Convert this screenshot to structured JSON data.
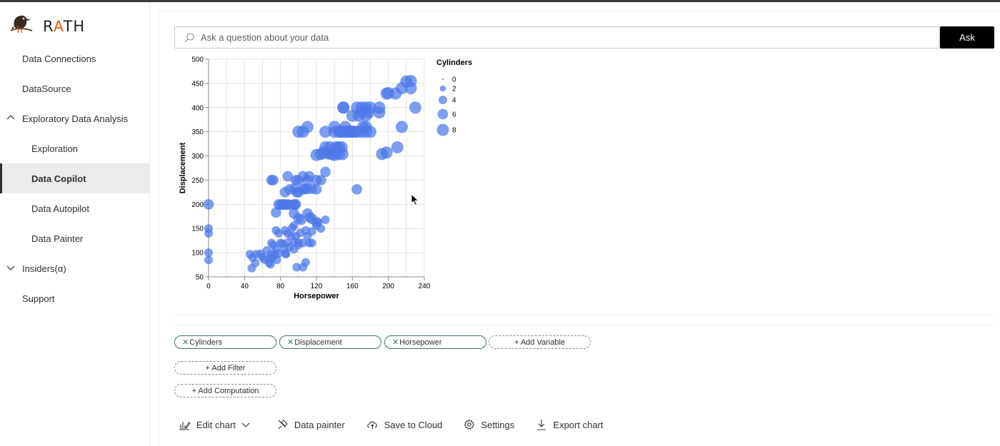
{
  "app": {
    "name_prefix": "R",
    "name_accent": "A",
    "name_suffix": "TH"
  },
  "sidebar": {
    "items": [
      {
        "label": "Data Connections"
      },
      {
        "label": "DataSource"
      },
      {
        "label": "Exploratory Data Analysis"
      },
      {
        "label": "Exploration"
      },
      {
        "label": "Data Copilot"
      },
      {
        "label": "Data Autopilot"
      },
      {
        "label": "Data Painter"
      },
      {
        "label": "Insiders(α)"
      },
      {
        "label": "Support"
      }
    ]
  },
  "search": {
    "placeholder": "Ask a question about your data",
    "button": "Ask"
  },
  "fields": {
    "chips": [
      "Cylinders",
      "Displacement",
      "Horsepower"
    ],
    "add_variable": "+ Add Variable",
    "add_filter": "+ Add Filter",
    "add_computation": "+ Add Computation"
  },
  "toolbar": {
    "edit_chart": "Edit chart",
    "data_painter": "Data painter",
    "save_to_cloud": "Save to Cloud",
    "settings": "Settings",
    "export_chart": "Export chart"
  },
  "chart_data": {
    "type": "scatter",
    "xlabel": "Horsepower",
    "ylabel": "Displacement",
    "xlim": [
      0,
      240
    ],
    "ylim": [
      50,
      500
    ],
    "xticks": [
      0,
      40,
      80,
      120,
      160,
      200,
      240
    ],
    "yticks": [
      50,
      100,
      150,
      200,
      250,
      300,
      350,
      400,
      450,
      500
    ],
    "grid": true,
    "color": "#4c78e8",
    "size_legend": {
      "title": "Cylinders",
      "values": [
        0,
        2,
        4,
        6,
        8
      ],
      "placement": "right"
    },
    "points": [
      [
        0,
        200,
        6
      ],
      [
        0,
        150,
        4
      ],
      [
        0,
        140,
        4
      ],
      [
        0,
        100,
        4
      ],
      [
        0,
        85,
        4
      ],
      [
        46,
        97,
        4
      ],
      [
        48,
        68,
        4
      ],
      [
        49,
        90,
        4
      ],
      [
        52,
        79,
        4
      ],
      [
        53,
        97,
        4
      ],
      [
        58,
        98,
        4
      ],
      [
        60,
        91,
        4
      ],
      [
        62,
        86,
        4
      ],
      [
        65,
        105,
        4
      ],
      [
        67,
        79,
        4
      ],
      [
        68,
        90,
        4
      ],
      [
        69,
        76,
        4
      ],
      [
        70,
        97,
        4
      ],
      [
        70,
        120,
        4
      ],
      [
        71,
        89,
        4
      ],
      [
        72,
        116,
        4
      ],
      [
        74,
        98,
        4
      ],
      [
        75,
        108,
        4
      ],
      [
        76,
        85,
        4
      ],
      [
        78,
        98,
        4
      ],
      [
        80,
        120,
        4
      ],
      [
        82,
        119,
        4
      ],
      [
        84,
        107,
        4
      ],
      [
        86,
        98,
        4
      ],
      [
        88,
        140,
        4
      ],
      [
        88,
        121,
        4
      ],
      [
        90,
        112,
        4
      ],
      [
        92,
        135,
        4
      ],
      [
        93,
        151,
        4
      ],
      [
        95,
        156,
        4
      ],
      [
        95,
        107,
        4
      ],
      [
        96,
        122,
        4
      ],
      [
        97,
        134,
        4
      ],
      [
        98,
        70,
        4
      ],
      [
        100,
        121,
        4
      ],
      [
        102,
        141,
        4
      ],
      [
        105,
        120,
        4
      ],
      [
        108,
        146,
        4
      ],
      [
        110,
        134,
        4
      ],
      [
        112,
        120,
        4
      ],
      [
        115,
        120,
        4
      ],
      [
        115,
        144,
        4
      ],
      [
        120,
        156,
        4
      ],
      [
        122,
        163,
        4
      ],
      [
        125,
        150,
        4
      ],
      [
        130,
        168,
        4
      ],
      [
        75,
        146,
        4
      ],
      [
        78,
        140,
        4
      ],
      [
        85,
        146,
        4
      ],
      [
        86,
        97,
        4
      ],
      [
        100,
        116,
        4
      ],
      [
        105,
        70,
        4
      ],
      [
        108,
        80,
        4
      ],
      [
        70,
        250,
        6
      ],
      [
        72,
        250,
        6
      ],
      [
        85,
        225,
        6
      ],
      [
        88,
        258,
        6
      ],
      [
        90,
        231,
        6
      ],
      [
        95,
        232,
        6
      ],
      [
        97,
        250,
        6
      ],
      [
        98,
        225,
        6
      ],
      [
        100,
        250,
        6
      ],
      [
        100,
        225,
        6
      ],
      [
        105,
        232,
        6
      ],
      [
        105,
        258,
        6
      ],
      [
        107,
        231,
        6
      ],
      [
        110,
        232,
        6
      ],
      [
        110,
        250,
        6
      ],
      [
        112,
        258,
        6
      ],
      [
        115,
        232,
        6
      ],
      [
        120,
        231,
        6
      ],
      [
        120,
        250,
        6
      ],
      [
        125,
        250,
        6
      ],
      [
        130,
        267,
        6
      ],
      [
        165,
        231,
        6
      ],
      [
        78,
        200,
        6
      ],
      [
        80,
        199,
        6
      ],
      [
        82,
        200,
        6
      ],
      [
        84,
        200,
        6
      ],
      [
        85,
        199,
        6
      ],
      [
        88,
        200,
        6
      ],
      [
        90,
        199,
        6
      ],
      [
        95,
        200,
        6
      ],
      [
        96,
        199,
        6
      ],
      [
        97,
        200,
        6
      ],
      [
        100,
        171,
        6
      ],
      [
        103,
        168,
        6
      ],
      [
        110,
        181,
        6
      ],
      [
        113,
        173,
        6
      ],
      [
        115,
        170,
        6
      ],
      [
        120,
        163,
        6
      ],
      [
        95,
        181,
        6
      ],
      [
        75,
        183,
        6
      ],
      [
        100,
        350,
        8
      ],
      [
        105,
        350,
        8
      ],
      [
        110,
        360,
        8
      ],
      [
        120,
        302,
        8
      ],
      [
        125,
        304,
        8
      ],
      [
        128,
        307,
        8
      ],
      [
        130,
        318,
        8
      ],
      [
        130,
        350,
        8
      ],
      [
        133,
        305,
        8
      ],
      [
        135,
        318,
        8
      ],
      [
        137,
        304,
        8
      ],
      [
        140,
        350,
        8
      ],
      [
        140,
        302,
        8
      ],
      [
        142,
        318,
        8
      ],
      [
        145,
        350,
        8
      ],
      [
        145,
        304,
        8
      ],
      [
        145,
        318,
        8
      ],
      [
        147,
        350,
        8
      ],
      [
        148,
        318,
        8
      ],
      [
        149,
        304,
        8
      ],
      [
        150,
        350,
        8
      ],
      [
        150,
        400,
        8
      ],
      [
        152,
        360,
        8
      ],
      [
        153,
        350,
        8
      ],
      [
        155,
        350,
        8
      ],
      [
        157,
        351,
        8
      ],
      [
        158,
        350,
        8
      ],
      [
        160,
        350,
        8
      ],
      [
        160,
        383,
        8
      ],
      [
        162,
        350,
        8
      ],
      [
        165,
        400,
        8
      ],
      [
        165,
        350,
        8
      ],
      [
        167,
        383,
        8
      ],
      [
        170,
        400,
        8
      ],
      [
        170,
        350,
        8
      ],
      [
        170,
        390,
        8
      ],
      [
        172,
        360,
        8
      ],
      [
        175,
        400,
        8
      ],
      [
        175,
        350,
        8
      ],
      [
        175,
        383,
        8
      ],
      [
        178,
        390,
        8
      ],
      [
        180,
        350,
        8
      ],
      [
        180,
        400,
        8
      ],
      [
        190,
        400,
        8
      ],
      [
        190,
        390,
        8
      ],
      [
        193,
        304,
        8
      ],
      [
        198,
        429,
        8
      ],
      [
        198,
        307,
        8
      ],
      [
        208,
        429,
        8
      ],
      [
        210,
        318,
        8
      ],
      [
        215,
        440,
        8
      ],
      [
        215,
        360,
        8
      ],
      [
        220,
        454,
        8
      ],
      [
        225,
        455,
        8
      ],
      [
        225,
        440,
        8
      ],
      [
        230,
        400,
        8
      ],
      [
        150,
        400,
        8
      ],
      [
        140,
        360,
        8
      ],
      [
        175,
        360,
        8
      ],
      [
        200,
        430,
        8
      ]
    ]
  }
}
